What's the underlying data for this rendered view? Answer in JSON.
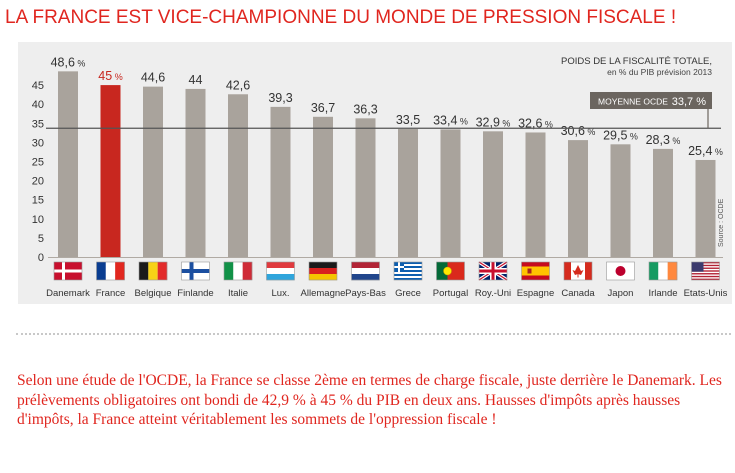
{
  "headline": "LA FRANCE EST VICE-CHAMPIONNE DU MONDE DE PRESSION FISCALE !",
  "body_text": "Selon une étude de l'OCDE, la France se classe 2ème en termes de charge fiscale, juste derrière le Danemark. Les prélèvements obligatoires ont bondi de 42,9 % à 45 % du PIB en deux ans. Hausses d'impôts après hausses d'impôts, la France atteint véritablement les sommets de l'oppression fiscale !",
  "colors": {
    "headline": "#e0261f",
    "bar": "#a9a39c",
    "highlight_bar": "#c8271f",
    "average_line": "#555555",
    "text": "#333333",
    "panel": "#eeeeee"
  },
  "chart_data": {
    "type": "bar",
    "title": "POIDS DE LA FISCALITÉ TOTALE,",
    "subtitle": "en % du PIB prévision 2013",
    "source": "Source : OCDE",
    "ylim": [
      0,
      50
    ],
    "yticks": [
      0,
      5,
      10,
      15,
      20,
      25,
      30,
      35,
      40,
      45
    ],
    "grid": false,
    "highlight": "France",
    "categories": [
      "Danemark",
      "France",
      "Belgique",
      "Finlande",
      "Italie",
      "Lux.",
      "Allemagne",
      "Pays-Bas",
      "Grece",
      "Portugal",
      "Roy.-Uni",
      "Espagne",
      "Canada",
      "Japon",
      "Irlande",
      "Etats-Unis"
    ],
    "values": [
      48.6,
      45,
      44.6,
      44,
      42.6,
      39.3,
      36.7,
      36.3,
      33.5,
      33.4,
      32.9,
      32.6,
      30.6,
      29.5,
      28.3,
      25.4
    ],
    "value_labels": [
      {
        "num": "48,6",
        "pct": " %"
      },
      {
        "num": "45",
        "pct": " %"
      },
      {
        "num": "44,6",
        "pct": ""
      },
      {
        "num": "44",
        "pct": ""
      },
      {
        "num": "42,6",
        "pct": ""
      },
      {
        "num": "39,3",
        "pct": ""
      },
      {
        "num": "36,7",
        "pct": ""
      },
      {
        "num": "36,3",
        "pct": ""
      },
      {
        "num": "33,5",
        "pct": ""
      },
      {
        "num": "33,4",
        "pct": " %"
      },
      {
        "num": "32,9",
        "pct": " %"
      },
      {
        "num": "32,6",
        "pct": " %"
      },
      {
        "num": "30,6",
        "pct": " %"
      },
      {
        "num": "29,5",
        "pct": " %"
      },
      {
        "num": "28,3",
        "pct": " %"
      },
      {
        "num": "25,4",
        "pct": " %"
      }
    ],
    "flags": [
      "denmark",
      "france",
      "belgium",
      "finland",
      "italy",
      "luxembourg",
      "germany",
      "netherlands",
      "greece",
      "portugal",
      "united-kingdom",
      "spain",
      "canada",
      "japan",
      "ireland",
      "united-states"
    ],
    "average": {
      "label": "MOYENNE OCDE",
      "value": 33.7,
      "value_label": "33,7 %"
    }
  }
}
